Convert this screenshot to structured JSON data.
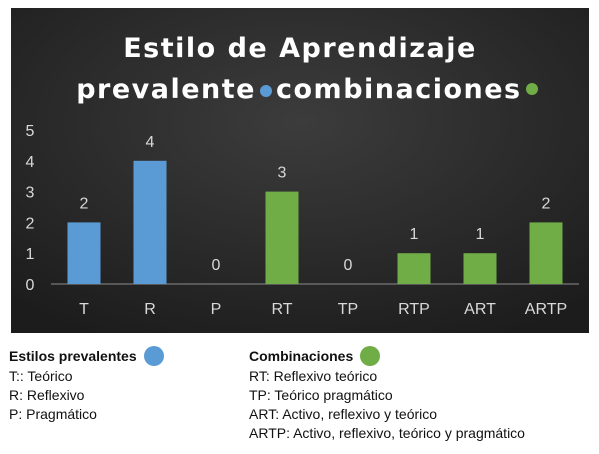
{
  "chart_data": {
    "type": "bar",
    "title_lines": [
      "Estilo de Aprendizaje",
      "prevalente",
      "combinaciones"
    ],
    "categories": [
      "T",
      "R",
      "P",
      "RT",
      "TP",
      "RTP",
      "ART",
      "ARTP"
    ],
    "values": [
      2,
      4,
      0,
      3,
      0,
      1,
      1,
      2
    ],
    "groups": [
      "prevalente",
      "prevalente",
      "prevalente",
      "combinacion",
      "combinacion",
      "combinacion",
      "combinacion",
      "combinacion"
    ],
    "y_ticks": [
      "0",
      "1",
      "2",
      "3",
      "4",
      "5"
    ],
    "ylim": [
      0,
      5
    ],
    "grid": false,
    "background": "#2b2b2b",
    "colors": {
      "prevalente": "#5b9bd5",
      "combinacion": "#70ad47"
    }
  },
  "legend": {
    "left": {
      "title": "Estilos prevalentes",
      "dot_color": "#5b9bd5",
      "items": [
        "T:: Teórico",
        "R: Reflexivo",
        "P: Pragmático"
      ]
    },
    "right": {
      "title": "Combinaciones",
      "dot_color": "#70ad47",
      "items": [
        "RT: Reflexivo teórico",
        "TP: Teórico pragmático",
        "ART: Activo, reflexivo y teórico",
        "ARTP: Activo, reflexivo, teórico y pragmático"
      ]
    }
  }
}
